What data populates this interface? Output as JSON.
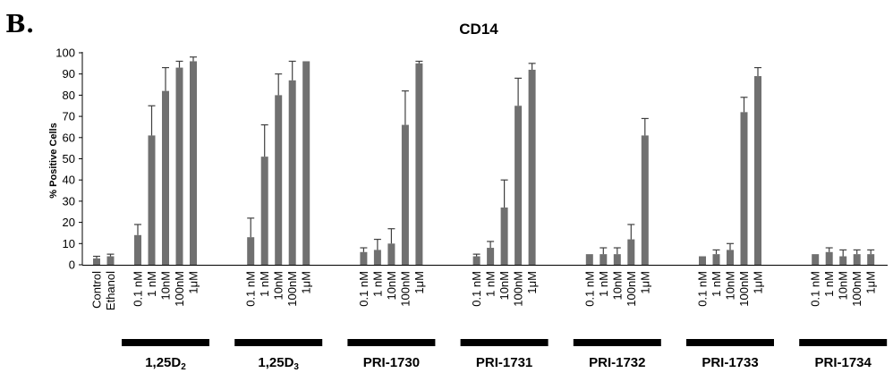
{
  "panel_label": "B.",
  "chart_data": {
    "type": "bar",
    "title": "CD14",
    "ylabel": "% Positive Cells",
    "xlabel": "",
    "ylim": [
      0,
      100
    ],
    "yticks": [
      0,
      10,
      20,
      30,
      40,
      50,
      60,
      70,
      80,
      90,
      100
    ],
    "grid": false,
    "bar_color": "#707070",
    "axis_color": "#000000",
    "controls": [
      {
        "label": "Control",
        "value": 3,
        "error": 1
      },
      {
        "label": "Ethanol",
        "value": 4,
        "error": 1
      }
    ],
    "groups": [
      {
        "name": "1,25D",
        "subscript": "2",
        "categories": [
          "0.1 nM",
          "1 nM",
          "10nM",
          "100nM",
          "1μM"
        ],
        "values": [
          14,
          61,
          82,
          93,
          96
        ],
        "errors": [
          5,
          14,
          11,
          3,
          2
        ]
      },
      {
        "name": "1,25D",
        "subscript": "3",
        "categories": [
          "0.1 nM",
          "1 nM",
          "10nM",
          "100nM",
          "1μM"
        ],
        "values": [
          13,
          51,
          80,
          87,
          96
        ],
        "errors": [
          9,
          15,
          10,
          9,
          0
        ]
      },
      {
        "name": "PRI-1730",
        "subscript": "",
        "categories": [
          "0.1 nM",
          "1 nM",
          "10nM",
          "100nM",
          "1μM"
        ],
        "values": [
          6,
          7,
          10,
          66,
          95
        ],
        "errors": [
          2,
          5,
          7,
          16,
          1
        ]
      },
      {
        "name": "PRI-1731",
        "subscript": "",
        "categories": [
          "0.1 nM",
          "1 nM",
          "10nM",
          "100nM",
          "1μM"
        ],
        "values": [
          4,
          8,
          27,
          75,
          92
        ],
        "errors": [
          1,
          3,
          13,
          13,
          3
        ]
      },
      {
        "name": "PRI-1732",
        "subscript": "",
        "categories": [
          "0.1 nM",
          "1 nM",
          "10nM",
          "100nM",
          "1μM"
        ],
        "values": [
          5,
          5,
          5,
          12,
          61
        ],
        "errors": [
          0,
          3,
          3,
          7,
          8
        ]
      },
      {
        "name": "PRI-1733",
        "subscript": "",
        "categories": [
          "0.1 nM",
          "1 nM",
          "10nM",
          "100nM",
          "1μM"
        ],
        "values": [
          4,
          5,
          7,
          72,
          89
        ],
        "errors": [
          0,
          2,
          3,
          7,
          4
        ]
      },
      {
        "name": "PRI-1734",
        "subscript": "",
        "categories": [
          "0.1 nM",
          "1 nM",
          "10nM",
          "100nM",
          "1μM"
        ],
        "values": [
          5,
          6,
          4,
          5,
          5
        ],
        "errors": [
          0,
          2,
          3,
          2,
          2
        ]
      }
    ]
  }
}
